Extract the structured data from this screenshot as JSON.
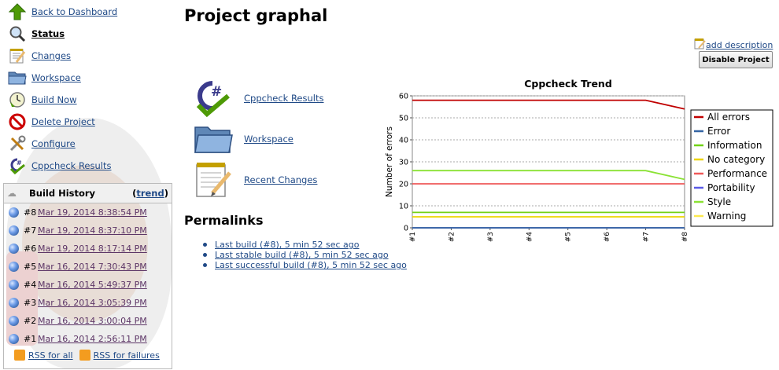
{
  "sidebar": {
    "tasks": [
      {
        "label": "Back to Dashboard"
      },
      {
        "label": "Status"
      },
      {
        "label": "Changes"
      },
      {
        "label": "Workspace"
      },
      {
        "label": "Build Now"
      },
      {
        "label": "Delete Project"
      },
      {
        "label": "Configure"
      },
      {
        "label": "Cppcheck Results"
      }
    ]
  },
  "build_history": {
    "title": "Build History",
    "trend_open": "(",
    "trend_label": "trend",
    "trend_close": ")",
    "builds": [
      {
        "num": "#8",
        "date": "Mar 19, 2014 8:38:54 PM"
      },
      {
        "num": "#7",
        "date": "Mar 19, 2014 8:37:10 PM"
      },
      {
        "num": "#6",
        "date": "Mar 19, 2014 8:17:14 PM"
      },
      {
        "num": "#5",
        "date": "Mar 16, 2014 7:30:43 PM"
      },
      {
        "num": "#4",
        "date": "Mar 16, 2014 5:49:37 PM"
      },
      {
        "num": "#3",
        "date": "Mar 16, 2014 3:05:39 PM"
      },
      {
        "num": "#2",
        "date": "Mar 16, 2014 3:00:04 PM"
      },
      {
        "num": "#1",
        "date": "Mar 16, 2014 2:56:11 PM"
      }
    ],
    "rss_all": "RSS for all",
    "rss_failures": "RSS for failures"
  },
  "main": {
    "title": "Project graphal",
    "add_description": "add description",
    "disable_button": "Disable Project",
    "links": [
      {
        "label": "Cppcheck Results"
      },
      {
        "label": "Workspace"
      },
      {
        "label": "Recent Changes"
      }
    ],
    "permalinks_title": "Permalinks",
    "permalinks": [
      {
        "label": "Last build (#8), 5 min 52 sec ago"
      },
      {
        "label": "Last stable build (#8), 5 min 52 sec ago"
      },
      {
        "label": "Last successful build (#8), 5 min 52 sec ago"
      }
    ]
  },
  "chart_data": {
    "type": "line",
    "title": "Cppcheck Trend",
    "ylabel": "Number of errors",
    "xlabel": "",
    "categories": [
      "#1",
      "#2",
      "#3",
      "#4",
      "#5",
      "#6",
      "#7",
      "#8"
    ],
    "ylim": [
      0,
      60
    ],
    "yticks": [
      0,
      10,
      20,
      30,
      40,
      50,
      60
    ],
    "grid": true,
    "legend_position": "right",
    "series": [
      {
        "name": "All errors",
        "color": "#c00000",
        "values": [
          58,
          58,
          58,
          58,
          58,
          58,
          58,
          54
        ]
      },
      {
        "name": "Error",
        "color": "#3465a4",
        "values": [
          0,
          0,
          0,
          0,
          0,
          0,
          0,
          0
        ]
      },
      {
        "name": "Information",
        "color": "#73d216",
        "values": [
          7,
          7,
          7,
          7,
          7,
          7,
          7,
          7
        ]
      },
      {
        "name": "No category",
        "color": "#edd400",
        "values": [
          5,
          5,
          5,
          5,
          5,
          5,
          5,
          5
        ]
      },
      {
        "name": "Performance",
        "color": "#ef5959",
        "values": [
          20,
          20,
          20,
          20,
          20,
          20,
          20,
          20
        ]
      },
      {
        "name": "Portability",
        "color": "#5a5ae6",
        "values": [
          0,
          0,
          0,
          0,
          0,
          0,
          0,
          0
        ]
      },
      {
        "name": "Style",
        "color": "#8ae234",
        "values": [
          26,
          26,
          26,
          26,
          26,
          26,
          26,
          22
        ]
      },
      {
        "name": "Warning",
        "color": "#fce94f",
        "values": [
          0,
          0,
          0,
          0,
          0,
          0,
          0,
          0
        ]
      }
    ]
  }
}
